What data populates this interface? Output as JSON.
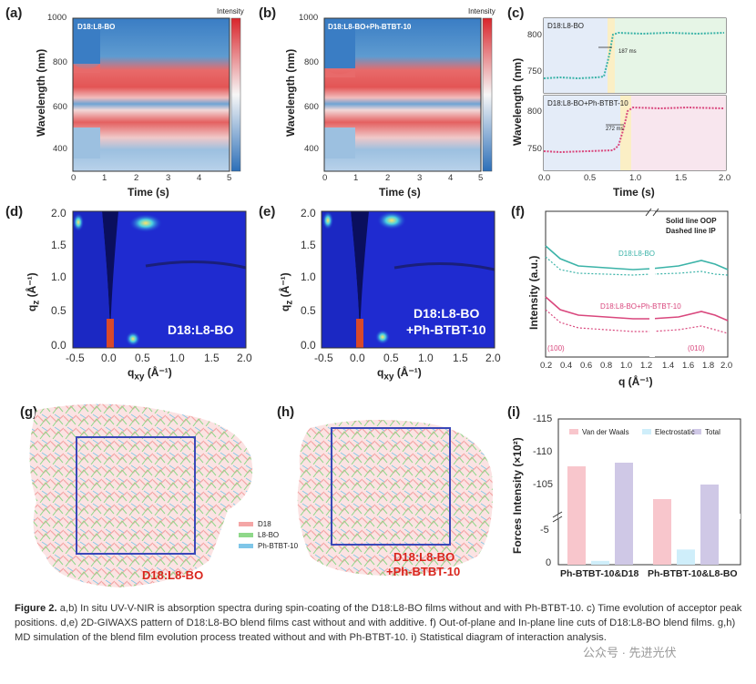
{
  "panels": {
    "a": {
      "label": "(a)",
      "title": "D18:L8-BO",
      "xlabel": "Time (s)",
      "ylabel": "Wavelength (nm)",
      "xticks": [
        "0",
        "1",
        "2",
        "3",
        "4",
        "5"
      ],
      "yticks": [
        "1000",
        "800",
        "600",
        "400"
      ],
      "cbar_title": "Intensity",
      "cbar_ticks": [
        "0.9",
        "0.8",
        "0.7",
        "0.6",
        "0.5",
        "0.4",
        "0.3",
        "0.2",
        "0.1"
      ]
    },
    "b": {
      "label": "(b)",
      "title": "D18:L8-BO+Ph-BTBT-10",
      "xlabel": "Time (s)",
      "ylabel": "Wavelength (nm)",
      "xticks": [
        "0",
        "1",
        "2",
        "3",
        "4",
        "5"
      ],
      "yticks": [
        "1000",
        "800",
        "600",
        "400"
      ],
      "cbar_title": "Intensity",
      "cbar_ticks": [
        "0.9",
        "0.8",
        "0.7",
        "0.6",
        "0.5",
        "0.4",
        "0.3",
        "0.2",
        "0.1"
      ]
    },
    "c": {
      "label": "(c)",
      "top_title": "D18:L8-BO",
      "bottom_title": "D18:L8-BO+Ph-BTBT-10",
      "top_annot": "187 ms",
      "bottom_annot": "272 ms",
      "xlabel": "Time (s)",
      "ylabel": "Wavelength (nm)",
      "xticks": [
        "0.0",
        "0.5",
        "1.0",
        "1.5",
        "2.0"
      ],
      "yticks_top": [
        "800",
        "750"
      ],
      "yticks_bottom": [
        "800",
        "750"
      ]
    },
    "d": {
      "label": "(d)",
      "text": "D18:L8-BO",
      "xlabel": "q",
      "xsub": "xy",
      "xunit": "(Å⁻¹)",
      "ylabel": "q",
      "ysub": "z",
      "yunit": "(Å⁻¹)",
      "xticks": [
        "-0.5",
        "0.0",
        "0.5",
        "1.0",
        "1.5",
        "2.0"
      ],
      "yticks": [
        "2.0",
        "1.5",
        "1.0",
        "0.5",
        "0.0"
      ]
    },
    "e": {
      "label": "(e)",
      "text_line1": "D18:L8-BO",
      "text_line2": "+Ph-BTBT-10",
      "xlabel": "q",
      "xsub": "xy",
      "xunit": "(Å⁻¹)",
      "ylabel": "q",
      "ysub": "z",
      "yunit": "(Å⁻¹)",
      "xticks": [
        "-0.5",
        "0.0",
        "0.5",
        "1.0",
        "1.5",
        "2.0"
      ],
      "yticks": [
        "2.0",
        "1.5",
        "1.0",
        "0.5",
        "0.0"
      ]
    },
    "f": {
      "label": "(f)",
      "legend1": "Solid line OOP",
      "legend2": "Dashed line IP",
      "series1": "D18:L8-BO",
      "series2": "D18:L8-BO+Ph-BTBT-10",
      "peak1": "(100)",
      "peak2": "(010)",
      "xlabel": "q (Å⁻¹)",
      "ylabel": "Intensity (a.u.)",
      "xticks": [
        "0.2",
        "0.4",
        "0.6",
        "0.8",
        "1.0",
        "1.2",
        "1.4",
        "1.6",
        "1.8",
        "2.0"
      ]
    },
    "g": {
      "label": "(g)",
      "text": "D18:L8-BO",
      "legend": [
        "D18",
        "L8-BO",
        "Ph-BTBT-10"
      ]
    },
    "h": {
      "label": "(h)",
      "text_line1": "D18:L8-BO",
      "text_line2": "+Ph-BTBT-10"
    },
    "i": {
      "label": "(i)",
      "ylabel": "Forces Intensity (×10²)",
      "legend": [
        "Van der Waals",
        "Electrostatic",
        "Total"
      ],
      "yticks": [
        "-115",
        "-110",
        "-105",
        "-5",
        "0"
      ],
      "categories": [
        "Ph-BTBT-10&D18",
        "Ph-BTBT-10&L8-BO"
      ]
    }
  },
  "colors": {
    "d18": "#f4a6a6",
    "l8bo": "#8fd88a",
    "btbt": "#7fc6e8",
    "box": "#3a47b8",
    "teal": "#3bb3a8",
    "pink": "#d9477d",
    "label_red": "#d9251c"
  },
  "chart_data": [
    {
      "type": "bar",
      "title": "",
      "ylabel": "Forces Intensity (×10²)",
      "categories": [
        "Ph-BTBT-10&D18",
        "Ph-BTBT-10&L8-BO"
      ],
      "series": [
        {
          "name": "Van der Waals",
          "values": [
            -108.5,
            -104
          ]
        },
        {
          "name": "Electrostatic",
          "values": [
            -0.5,
            -2
          ]
        },
        {
          "name": "Total",
          "values": [
            -109,
            -106
          ]
        }
      ],
      "ylim": [
        -115,
        0
      ],
      "legend": "top"
    }
  ],
  "caption": {
    "bold": "Figure 2.",
    "text": " a,b) In situ UV-V-NIR is absorption spectra during spin-coating of the D18:L8-BO films without and with Ph-BTBT-10. c) Time evolution of acceptor peak positions. d,e) 2D-GIWAXS pattern of D18:L8-BO blend films cast without and with additive. f) Out-of-plane and In-plane line cuts of D18:L8-BO blend films. g,h) MD simulation of the blend film evolution process treated without and with Ph-BTBT-10. i) Statistical diagram of interaction analysis."
  },
  "watermark": "公众号 · 先进光伏"
}
